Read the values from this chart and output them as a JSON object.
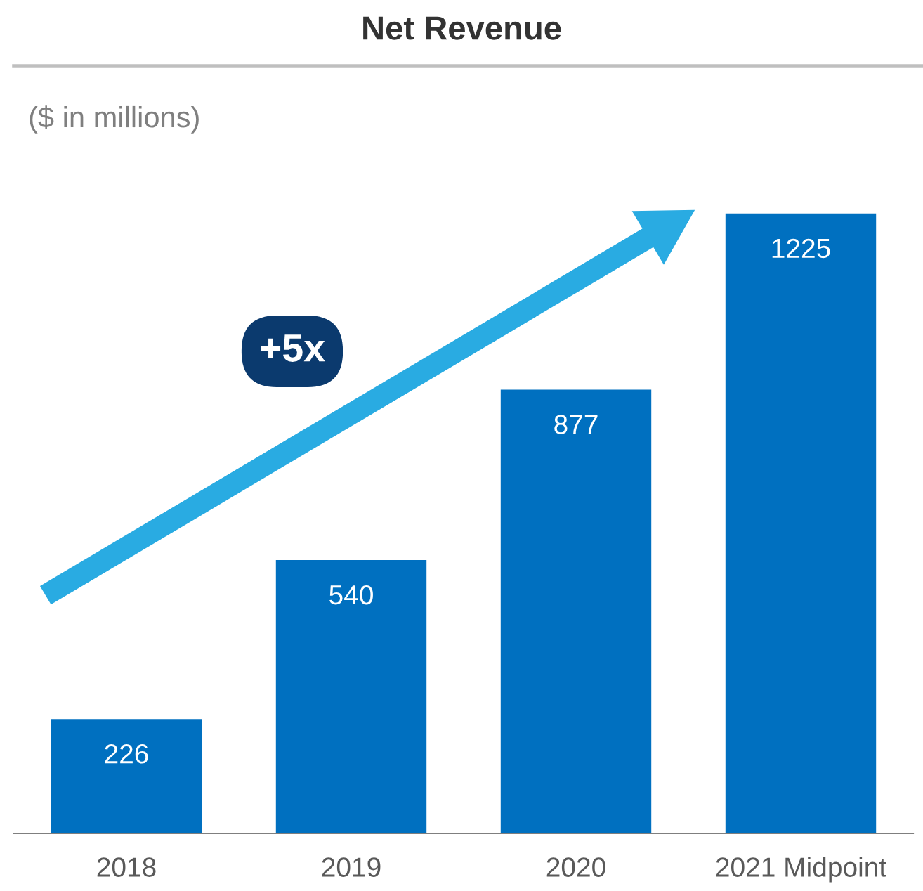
{
  "chart_data": {
    "type": "bar",
    "title": "Net Revenue",
    "subtitle": "($ in millions)",
    "categories": [
      "2018",
      "2019",
      "2020",
      "2021 Midpoint"
    ],
    "values": [
      226,
      540,
      877,
      1225
    ],
    "color": "#0070c0",
    "data_labels": true,
    "grid": false,
    "legend": false,
    "annotations": [
      "+5x"
    ]
  }
}
